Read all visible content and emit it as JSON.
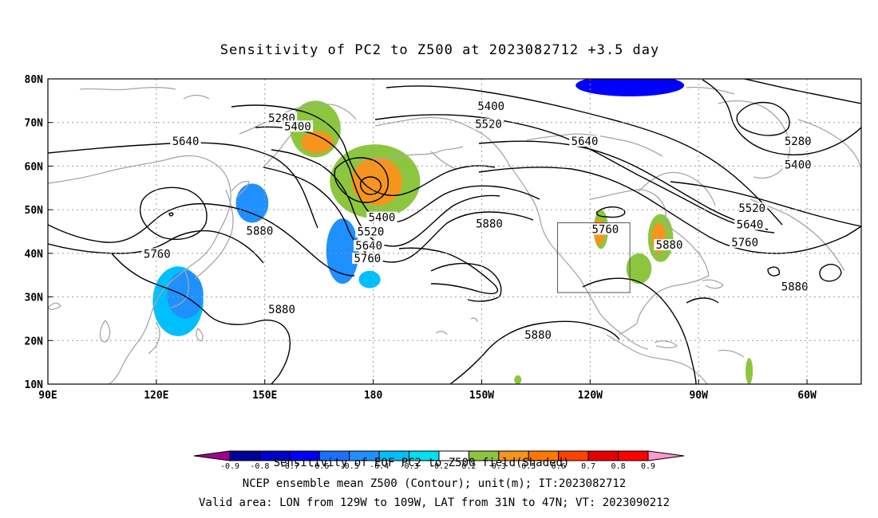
{
  "title": "Sensitivity of PC2 to Z500 at 2023082712 +3.5 day",
  "map": {
    "lon_labels": [
      "90E",
      "120E",
      "150E",
      "180",
      "150W",
      "120W",
      "90W",
      "60W"
    ],
    "lat_labels": [
      "80N",
      "70N",
      "60N",
      "50N",
      "40N",
      "30N",
      "20N",
      "10N"
    ],
    "contour_labels": [
      {
        "text": "5280",
        "lon": 154.7,
        "lat": 70.7
      },
      {
        "text": "5400",
        "lon": 159.1,
        "lat": 68.8
      },
      {
        "text": "5640",
        "lon": 128.1,
        "lat": 65.4
      },
      {
        "text": "5400",
        "lon": 212.6,
        "lat": 73.4
      },
      {
        "text": "5520",
        "lon": 211.9,
        "lat": 69.3
      },
      {
        "text": "5640",
        "lon": 238.5,
        "lat": 65.4
      },
      {
        "text": "5280",
        "lon": 297.5,
        "lat": 65.4
      },
      {
        "text": "5400",
        "lon": 297.5,
        "lat": 60.0
      },
      {
        "text": "5400",
        "lon": 182.4,
        "lat": 47.9
      },
      {
        "text": "5520",
        "lon": 179.3,
        "lat": 44.6
      },
      {
        "text": "5640",
        "lon": 178.8,
        "lat": 41.4
      },
      {
        "text": "5760",
        "lon": 178.4,
        "lat": 38.5
      },
      {
        "text": "5880",
        "lon": 148.6,
        "lat": 44.8
      },
      {
        "text": "5760",
        "lon": 120.2,
        "lat": 39.5
      },
      {
        "text": "5880",
        "lon": 154.7,
        "lat": 26.8
      },
      {
        "text": "5880",
        "lon": 212.1,
        "lat": 46.5
      },
      {
        "text": "5760",
        "lon": 244.2,
        "lat": 45.2
      },
      {
        "text": "5880",
        "lon": 261.9,
        "lat": 41.6
      },
      {
        "text": "5880",
        "lon": 225.6,
        "lat": 21.0
      },
      {
        "text": "5520",
        "lon": 284.8,
        "lat": 50.0
      },
      {
        "text": "5640",
        "lon": 284.2,
        "lat": 46.3
      },
      {
        "text": "5760",
        "lon": 282.8,
        "lat": 42.2
      },
      {
        "text": "5880",
        "lon": 296.6,
        "lat": 32.0
      }
    ],
    "sensitivity_regions": [
      {
        "level": "0.3-0.5",
        "color": "#8cc63f",
        "lon": [
          157,
          171
        ],
        "lat": [
          62,
          75
        ]
      },
      {
        "level": "0.5-0.7",
        "color": "#f7941d",
        "lon": [
          160,
          169
        ],
        "lat": [
          63,
          68
        ]
      },
      {
        "level": "0.3-0.5",
        "color": "#8cc63f",
        "lon": [
          168,
          193
        ],
        "lat": [
          48,
          65
        ]
      },
      {
        "level": "0.5-0.7",
        "color": "#f7941d",
        "lon": [
          174,
          188
        ],
        "lat": [
          51,
          62
        ]
      },
      {
        "level": "0.3-0.5",
        "color": "#8cc63f",
        "lon": [
          241,
          245
        ],
        "lat": [
          41,
          50
        ]
      },
      {
        "level": "0.5-0.7",
        "color": "#f7941d",
        "lon": [
          241,
          244
        ],
        "lat": [
          42,
          48
        ]
      },
      {
        "level": "0.3-0.5",
        "color": "#8cc63f",
        "lon": [
          250,
          257
        ],
        "lat": [
          33,
          40
        ]
      },
      {
        "level": "0.3-0.5",
        "color": "#8cc63f",
        "lon": [
          256,
          263
        ],
        "lat": [
          38,
          49
        ]
      },
      {
        "level": "0.5-0.7",
        "color": "#f7941d",
        "lon": [
          257,
          261
        ],
        "lat": [
          40,
          47
        ]
      },
      {
        "level": "0.3-0.5",
        "color": "#8cc63f",
        "lon": [
          283,
          285
        ],
        "lat": [
          10,
          16
        ]
      },
      {
        "level": "0.3-0.5",
        "color": "#8cc63f",
        "lon": [
          219,
          221
        ],
        "lat": [
          10,
          12
        ]
      },
      {
        "level": "-0.3 to -0.5",
        "color": "#1e90ff",
        "lon": [
          167,
          176
        ],
        "lat": [
          33,
          48
        ]
      },
      {
        "level": "-0.1 to -0.3",
        "color": "#00bfff",
        "lon": [
          176,
          182
        ],
        "lat": [
          32,
          36
        ]
      },
      {
        "level": "-0.3 to -0.5",
        "color": "#1e90ff",
        "lon": [
          142,
          151
        ],
        "lat": [
          47,
          56
        ]
      },
      {
        "level": "-0.1 to -0.3",
        "color": "#00bfff",
        "lon": [
          119,
          133
        ],
        "lat": [
          21,
          37
        ]
      },
      {
        "level": "-0.3 to -0.5",
        "color": "#1e90ff",
        "lon": [
          123,
          133
        ],
        "lat": [
          25,
          36
        ]
      },
      {
        "level": "-0.5 to -0.7",
        "color": "#0000ff",
        "lon": [
          236,
          266
        ],
        "lat": [
          76,
          81
        ]
      }
    ],
    "valid_box": {
      "lon": [
        231,
        251
      ],
      "lat": [
        31,
        47
      ]
    }
  },
  "colorbar": {
    "levels": [
      "-0.9",
      "-0.8",
      "-0.7",
      "-0.6",
      "-0.5",
      "-0.4",
      "-0.3",
      "-0.2",
      "0.2",
      "0.3",
      "0.5",
      "0.6",
      "0.7",
      "0.8",
      "0.9"
    ],
    "colors": [
      "#a00090",
      "#000099",
      "#0000cc",
      "#0000ff",
      "#1e6fff",
      "#1e90ff",
      "#00bfff",
      "#00e0f0",
      "#ffffff",
      "#8cc63f",
      "#f7941d",
      "#ff7700",
      "#ff4000",
      "#e60000",
      "#ff0000",
      "#ff99cc"
    ]
  },
  "footer": {
    "line1": "Sensitivity of EOF PC2 to Z500 field(Shaded)",
    "line2": "NCEP ensemble mean Z500 (Contour); unit(m); IT:2023082712",
    "line3": "Valid area: LON from 129W to 109W, LAT from 31N to 47N; VT: 2023090212"
  }
}
